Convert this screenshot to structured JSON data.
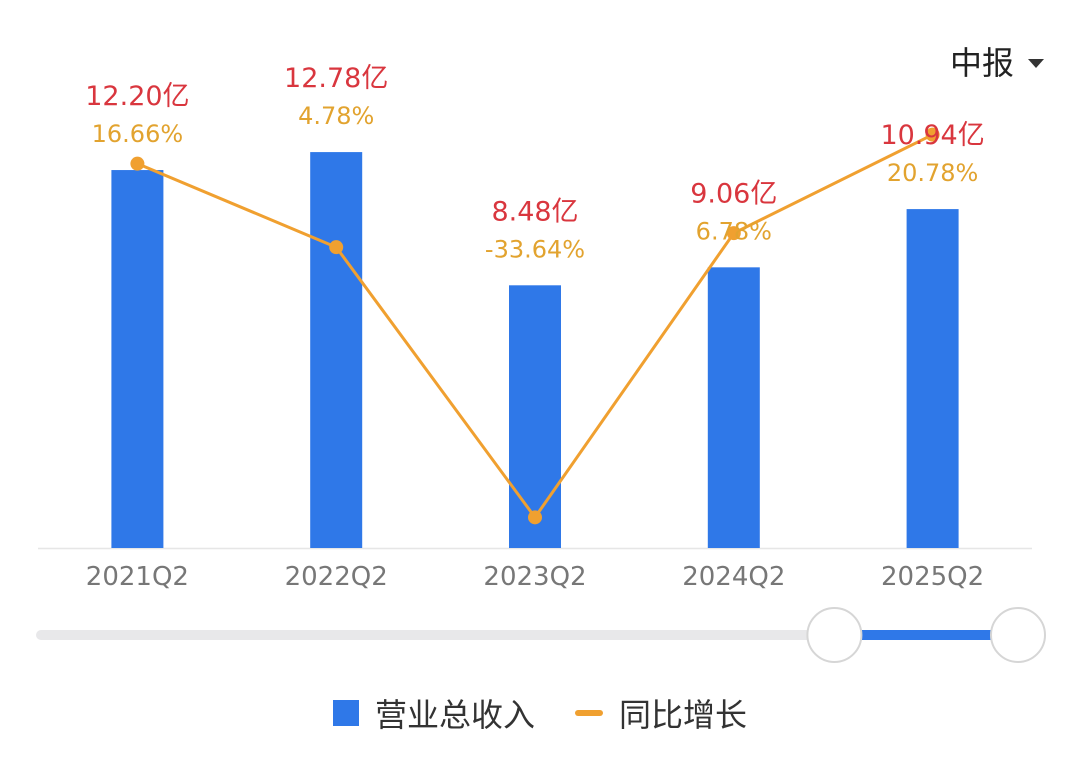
{
  "period_selector": {
    "label": "中报"
  },
  "chart_data": {
    "type": "bar",
    "categories": [
      "2021Q2",
      "2022Q2",
      "2023Q2",
      "2024Q2",
      "2025Q2"
    ],
    "series": [
      {
        "name": "营业总收入",
        "type": "bar",
        "color": "#2F78E8",
        "values": [
          12.2,
          12.78,
          8.48,
          9.06,
          10.94
        ],
        "labels": [
          "12.20亿",
          "12.78亿",
          "8.48亿",
          "9.06亿",
          "10.94亿"
        ]
      },
      {
        "name": "同比增长",
        "type": "line",
        "color": "#F0A030",
        "values": [
          16.66,
          4.78,
          -33.64,
          6.78,
          20.78
        ],
        "labels": [
          "16.66%",
          "4.78%",
          "-33.64%",
          "6.78%",
          "20.78%"
        ]
      }
    ],
    "revenue_label_color": "#D9363E",
    "growth_label_color": "#E2A32F",
    "ylim_revenue": [
      0,
      14.3
    ],
    "ylim_growth": [
      -38.0,
      25.0
    ],
    "legend_position": "bottom"
  },
  "range_slider": {
    "start": 0.8,
    "end": 1.0
  }
}
